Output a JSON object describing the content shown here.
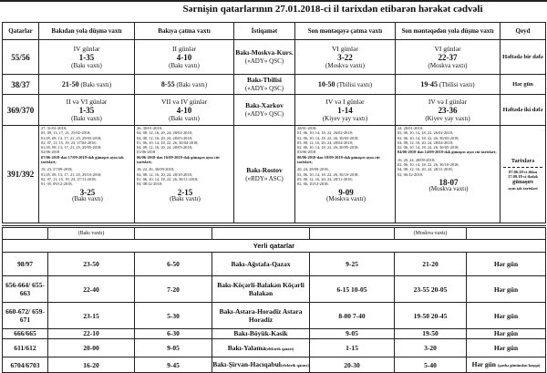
{
  "title": "Sərnişin qatarlarının 27.01.2018-ci il tarixdən etibarən hərəkət cədvəli",
  "headers": [
    "Qatarlar",
    "Bakıdan yola düşmə vaxtı",
    "Bakıya çatma vaxtı",
    "İstiqamət",
    "Son məntəqəyə çatma vaxtı",
    "Son məntəqədən yola düşmə vaxtı",
    "Qeyd"
  ],
  "intercity": [
    {
      "train": "55/56",
      "dep": {
        "days": "IV günlər",
        "time": "1-35",
        "zone": "(Bakı vaxtı)"
      },
      "arr": {
        "days": "II günlər",
        "time": "4-10",
        "zone": "(Bakı vaxtı)"
      },
      "direction": "Bakı-Moskva-Kurs.",
      "operator": "(«ADY» QSC)",
      "dest_arr": {
        "days": "VI günlər",
        "time": "3-22",
        "zone": "(Moskva vaxtı)"
      },
      "dest_dep": {
        "days": "VI günlər",
        "time": "22-37",
        "zone": "(Moskva vaxtı)"
      },
      "note": "Həftədə bir dəfə"
    },
    {
      "train": "38/37",
      "dep": {
        "days": "",
        "time": "21-50",
        "zone": "(Bakı vaxtı)"
      },
      "arr": {
        "days": "",
        "time": "8-55",
        "zone": "(Bakı vaxtı)"
      },
      "direction": "Bakı-Tbilisi",
      "operator": "(«ADY» QSC)",
      "dest_arr": {
        "days": "",
        "time": "10-50",
        "zone": "(Tbilisi vaxtı)"
      },
      "dest_dep": {
        "days": "",
        "time": "19-45",
        "zone": "(Tbilisi vaxtı)"
      },
      "note": "Hər gün"
    },
    {
      "train": "369/370",
      "dep": {
        "days": "II və VI günlər",
        "time": "1-35",
        "zone": "(Bakı vaxtı)"
      },
      "arr": {
        "days": "VII və IV günlər",
        "time": "4-10",
        "zone": "(Bakı vaxtı)"
      },
      "direction": "Bakı-Xarkov",
      "operator": "(«ADY» QSC)",
      "dest_arr": {
        "days": "IV və I günlər",
        "time": "1-14",
        "zone": "(Kiyev yay vaxtı)"
      },
      "dest_dep": {
        "days": "IV və I günlər",
        "time": "23-36",
        "zone": "(Kiyev yay vaxtı)"
      },
      "note": "Həftədə iki dəfə"
    }
  ],
  "rostov": {
    "train": "391/392",
    "direction": "Bakı-Rostov",
    "operator": "(«RDY» ASC)",
    "dep": {
      "dates_a": [
        "27, 31/01-2018;",
        "05, 09, 13, 17, 21, 25/02-2018;",
        "01,05, 09, 13, 17, 21, 25, 29/03-2018;",
        "02, 07, 11, 15, 19, 23, 27/04-2018;",
        "01,05, 09, 13, 17, 21, 25, 29/05-2018;",
        "02/06-2018"
      ],
      "period": "07/06-2018-dən 17/09-2018-dək günaşırı ayın tək tarixləri;",
      "dates_b": [
        "19, 23, 27/09-2018;",
        "01,05, 09, 13, 17, 21, 25, 29/10-2018;",
        "02, 07, 11, 15, 19, 23, 27/11-2018;",
        "01, 05, 09/12-2018;"
      ],
      "time": "3-25",
      "zone": "(Bakı vaxtı)"
    },
    "arr": {
      "dates_a": [
        "26, 30/01-2018;",
        "04, 08, 12, 16, 20, 24, 28/02-2018;",
        "04, 08, 12, 16, 20, 24, 28/03-2018;",
        "01, 06, 10, 14, 18, 22, 26, 30/04-2018;",
        "04, 08, 12, 16, 20, 24, 28/05-2018;",
        "01/06-2018"
      ],
      "period": "06/06-2018-dən 16/09-2018-dək günaşırı ayın cüt tarixləri;",
      "dates_b": [
        "18, 22, 26, 30/09-2018;",
        "04, 08, 12, 16, 20, 24, 28/10-2018;",
        "01, 06, 10, 14, 18, 22, 26, 30/11-2018;",
        "04, 08/12-2018;"
      ],
      "time": "2-15",
      "zone": "(Bakı vaxtı)"
    },
    "dest_arr": {
      "dates_a": [
        "28/01-2018;",
        "01, 06, 10, 14, 18, 22, 26/02-2018;",
        "02, 06, 10, 14, 18, 22, 26, 30/03-2018;",
        "03, 08, 12, 16, 20, 24, 28/04-2018;",
        "02, 06, 10, 14, 18, 22, 26, 30/05-2018;",
        "03/06-2018"
      ],
      "period": "08/06-2018-dən 18/09-2018-dək günaşırı ayın cüt tarixləri;",
      "dates_b": [
        "20, 24, 28/09-2018;",
        "02, 06, 10, 14, 18, 22, 26, 30/10-2018;",
        "03, 08, 12, 16, 20, 24, 28/11-2018;",
        "02, 06, 10/12-2018;"
      ],
      "time": "9-09",
      "zone": "(Moskva vaxtı)"
    },
    "dest_dep": {
      "dates_a": [
        "24, 28/01-2018;",
        "02, 06, 10, 14, 18, 22, 26/02-2018;",
        "02, 06, 10, 14, 18, 22, 26, 30/03-2018;",
        "04, 08, 12, 16, 20, 24, 28/04-2018;",
        "02, 06, 10, 14, 18, 22, 26, 30/05-2018;"
      ],
      "period": "04/06-2018-dən 14/09-2018-dək günaşırı ayın cüt tarixləri;",
      "dates_b": [
        "16, 20, 24, 28/09-2018;",
        "02, 06, 10, 14, 18, 22, 26, 30/10-2018;",
        "04, 08, 12, 16, 20, 24, 28/11-2018;",
        "02, 06/12-2018;"
      ],
      "time": "18-07",
      "zone": "(Moskva vaxtı)"
    },
    "note": {
      "head": "Tarixlərə",
      "body": "07.06.18-ci ildən 17.09.18-ci ilədək",
      "mid": "günaşırı",
      "tail": "ayın tək tarixləri"
    }
  },
  "local_title": "Yerli qatarlar",
  "local_zone_left": "(Bakı vaxtı)",
  "local_zone_right": "(Moskva vaxtı)",
  "local": [
    {
      "train": "98/97",
      "dep": "23-50",
      "arr": "6-50",
      "direction": "Bakı-Ağstafa-Qazax",
      "sub": "",
      "dest_arr": "9-25",
      "dest_dep": "21-20",
      "note": "Hər gün",
      "note_sub": ""
    },
    {
      "train": "656-664/ 655-663",
      "dep": "22-40",
      "arr": "7-20",
      "direction": "Bakı-Köçərli-Balakən Köçərli Balakən",
      "sub": "",
      "dest_arr": "6-15 10-05",
      "dest_dep": "23-55 20-05",
      "note": "Hər gün",
      "note_sub": ""
    },
    {
      "train": "660-672/ 659-671",
      "dep": "23-15",
      "arr": "5-30",
      "direction": "Bakı-Astara-Horadiz Astara Horadiz",
      "sub": "",
      "dest_arr": "8-00 7-40",
      "dest_dep": "19-50 20-45",
      "note": "Hər gün",
      "note_sub": ""
    },
    {
      "train": "666/665",
      "dep": "22-10",
      "arr": "6-30",
      "direction": "Bakı-Böyük-Kəsik",
      "sub": "",
      "dest_arr": "9-05",
      "dest_dep": "19-50",
      "note": "Hər gün",
      "note_sub": ""
    },
    {
      "train": "611/612",
      "dep": "20-00",
      "arr": "9-05",
      "direction": "Bakı-Yalama",
      "sub": "(elektrik qatarı)",
      "dest_arr": "1-15",
      "dest_dep": "3-20",
      "note": "Hər gün",
      "note_sub": ""
    },
    {
      "train": "6704/6703",
      "dep": "16-20",
      "arr": "9-45",
      "direction": "Bakı-Şirvan-Hacıqabul",
      "sub": "(elektrik qatarı)",
      "dest_arr": "20-30",
      "dest_dep": "5-40",
      "note": "Hər gün",
      "note_sub": "(şənbə günündən başqa)"
    }
  ]
}
